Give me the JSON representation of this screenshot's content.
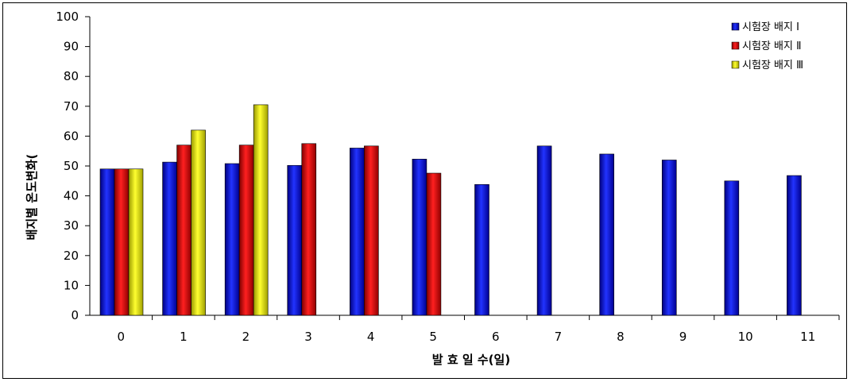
{
  "chart_data": {
    "type": "bar",
    "title": "",
    "xlabel": "발 효 일 수(일)",
    "ylabel": "배지별 온도변화(",
    "ylim": [
      0,
      100
    ],
    "yticks": [
      0,
      10,
      20,
      30,
      40,
      50,
      60,
      70,
      80,
      90,
      100
    ],
    "categories": [
      "0",
      "1",
      "2",
      "3",
      "4",
      "5",
      "6",
      "7",
      "8",
      "9",
      "10",
      "11"
    ],
    "legend_position": "top-right",
    "grid": false,
    "series": [
      {
        "name": "시험장 배지 Ⅰ",
        "color": "#0000cc",
        "values": [
          49,
          51.3,
          50.8,
          50.2,
          56,
          52.3,
          43.8,
          56.7,
          54,
          52,
          45,
          46.8
        ]
      },
      {
        "name": "시험장 배지 Ⅱ",
        "color": "#cc0000",
        "values": [
          49,
          57,
          57,
          57.5,
          56.7,
          47.6,
          null,
          null,
          null,
          null,
          null,
          null
        ]
      },
      {
        "name": "시험장 배지 Ⅲ",
        "color": "#e6e600",
        "values": [
          49,
          62,
          70.5,
          null,
          null,
          null,
          null,
          null,
          null,
          null,
          null,
          null
        ]
      }
    ]
  }
}
